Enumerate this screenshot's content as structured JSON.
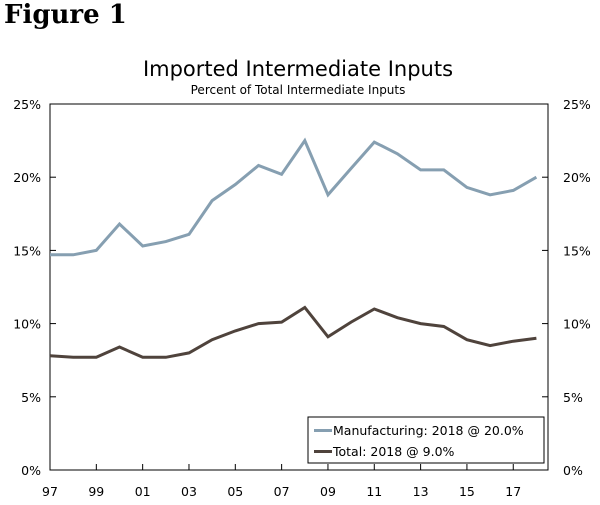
{
  "figure_label": "Figure 1",
  "chart_data": {
    "type": "line",
    "title": "Imported Intermediate Inputs",
    "subtitle": "Percent of Total Intermediate Inputs",
    "xlabel": "",
    "ylabel": "",
    "x": [
      1997,
      1998,
      1999,
      2000,
      2001,
      2002,
      2003,
      2004,
      2005,
      2006,
      2007,
      2008,
      2009,
      2010,
      2011,
      2012,
      2013,
      2014,
      2015,
      2016,
      2017,
      2018
    ],
    "xlim": [
      1997,
      2018.5
    ],
    "x_ticks": [
      1997,
      1999,
      2001,
      2003,
      2005,
      2007,
      2009,
      2011,
      2013,
      2015,
      2017
    ],
    "x_tick_labels": [
      "97",
      "99",
      "01",
      "03",
      "05",
      "07",
      "09",
      "11",
      "13",
      "15",
      "17"
    ],
    "ylim": [
      0,
      25
    ],
    "y_ticks": [
      0,
      5,
      10,
      15,
      20,
      25
    ],
    "y_tick_labels": [
      "0%",
      "5%",
      "10%",
      "15%",
      "20%",
      "25%"
    ],
    "grid": false,
    "legend_position": "bottom-right",
    "series": [
      {
        "name": "Manufacturing: 2018 @ 20.0%",
        "color": "#869fb1",
        "values": [
          14.7,
          14.7,
          15.0,
          16.8,
          15.3,
          15.6,
          16.1,
          18.4,
          19.5,
          20.8,
          20.2,
          22.5,
          18.8,
          20.6,
          22.4,
          21.6,
          20.5,
          20.5,
          19.3,
          18.8,
          19.1,
          20.0
        ]
      },
      {
        "name": "Total: 2018 @ 9.0%",
        "color": "#4f433c",
        "values": [
          7.8,
          7.7,
          7.7,
          8.4,
          7.7,
          7.7,
          8.0,
          8.9,
          9.5,
          10.0,
          10.1,
          11.1,
          9.1,
          10.1,
          11.0,
          10.4,
          10.0,
          9.8,
          8.9,
          8.5,
          8.8,
          9.0
        ]
      }
    ]
  }
}
